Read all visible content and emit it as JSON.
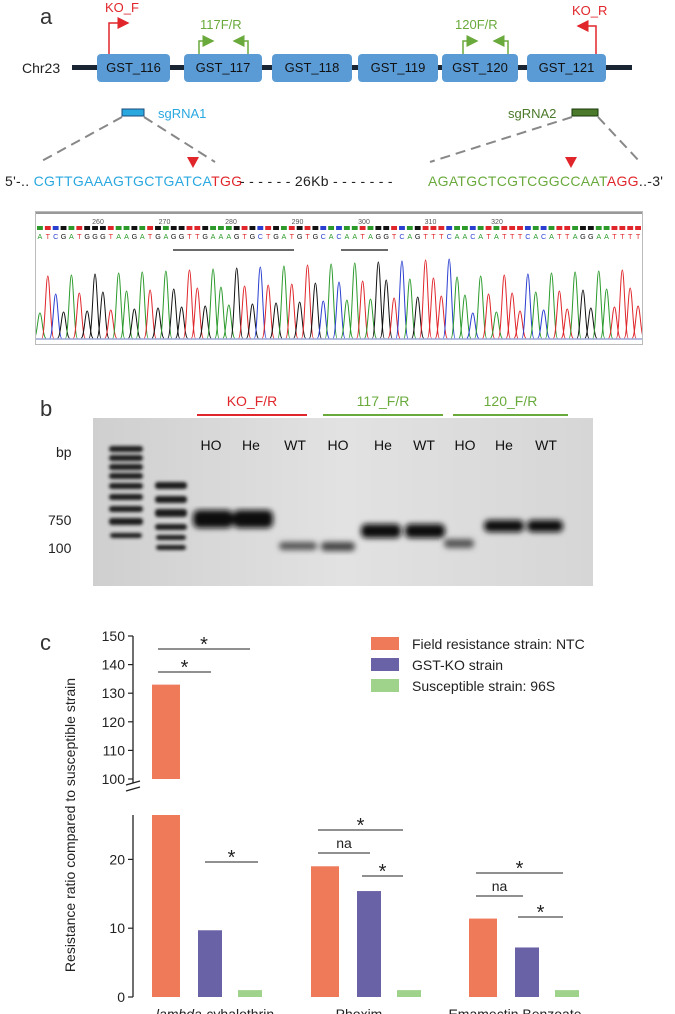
{
  "panel_a": {
    "letter": "a",
    "chromosome": "Chr23",
    "genes": [
      "GST_116",
      "GST_117",
      "GST_118",
      "GST_119",
      "GST_120",
      "GST_121"
    ],
    "primers": {
      "ko_f": "KO_F",
      "p117": "117F/R",
      "p120": "120F/R",
      "ko_r": "KO_R"
    },
    "sgrna1": "sgRNA1",
    "sgrna2": "sgRNA2",
    "seq_left_prefix": "5'-..",
    "seq_left_main": "CGTTGAAAGTGCTGATCA",
    "seq_left_pam": "TGG",
    "seq_gap": "- - - - - - 26Kb - - - - - - -",
    "seq_right_main": "AGATGCTCGTCGGCCAAT",
    "seq_right_pam": "AGG",
    "seq_right_suffix": "..-3'",
    "trace_positions": [
      "260",
      "270",
      "280",
      "290",
      "300",
      "310",
      "320"
    ],
    "trace_bases": "ATCGATGGGTAAGATGAGGTTGAAAGTGCTGATGTGCACAATAGGTCAGTTTCAACATATTTCACATTAGGAATTTT",
    "colors": {
      "gene": "#5b9bd5",
      "sgrna1": "#29a8e0",
      "sgrna2": "#4a7a2a",
      "primer_ko": "#e0262b",
      "primer_green": "#6aaa3c"
    }
  },
  "panel_b": {
    "letter": "b",
    "groups": [
      {
        "label": "KO_F/R",
        "color": "#e0262b",
        "lanes": [
          "HO",
          "He",
          "WT"
        ]
      },
      {
        "label": "117_F/R",
        "color": "#6aaa3c",
        "lanes": [
          "HO",
          "He",
          "WT"
        ]
      },
      {
        "label": "120_F/R",
        "color": "#6aaa3c",
        "lanes": [
          "HO",
          "He",
          "WT"
        ]
      }
    ],
    "bp_title": "bp",
    "marker_labels": [
      "750",
      "100"
    ]
  },
  "panel_c": {
    "letter": "c"
  },
  "chart_data": {
    "type": "bar",
    "ylabel": "Resistance ratio compared to susceptible strain",
    "xlabel": "",
    "categories_parts": [
      {
        "italic": "lambda",
        "rest": "-cyhalothrin"
      },
      {
        "italic": "",
        "rest": "Phoxim"
      },
      {
        "italic": "",
        "rest": "Emamectin Benzoate"
      }
    ],
    "series": [
      {
        "name": "Field resistance strain: NTC",
        "color": "#ee7a5a",
        "values": [
          133,
          19,
          11.4
        ]
      },
      {
        "name": "GST-KO strain",
        "color": "#6a62a6",
        "values": [
          9.7,
          15.4,
          7.2
        ]
      },
      {
        "name": "Susceptible strain: 96S",
        "color": "#9fd28a",
        "values": [
          1,
          1,
          1
        ]
      }
    ],
    "axis_break": {
      "lower": [
        0,
        25
      ],
      "upper": [
        100,
        150
      ]
    },
    "y_ticks_lower": [
      "0",
      "10",
      "20"
    ],
    "y_ticks_upper": [
      "100",
      "110",
      "120",
      "130",
      "140",
      "150"
    ],
    "legend_position": "top-right",
    "significance": [
      {
        "category": 0,
        "pair": "1-3",
        "label": "*"
      },
      {
        "category": 0,
        "pair": "1-2",
        "label": "*"
      },
      {
        "category": 0,
        "pair": "2-3",
        "label": "*"
      },
      {
        "category": 1,
        "pair": "1-3",
        "label": "*"
      },
      {
        "category": 1,
        "pair": "1-2",
        "label": "na"
      },
      {
        "category": 1,
        "pair": "2-3",
        "label": "*"
      },
      {
        "category": 2,
        "pair": "1-3",
        "label": "*"
      },
      {
        "category": 2,
        "pair": "1-2",
        "label": "na"
      },
      {
        "category": 2,
        "pair": "2-3",
        "label": "*"
      }
    ]
  }
}
